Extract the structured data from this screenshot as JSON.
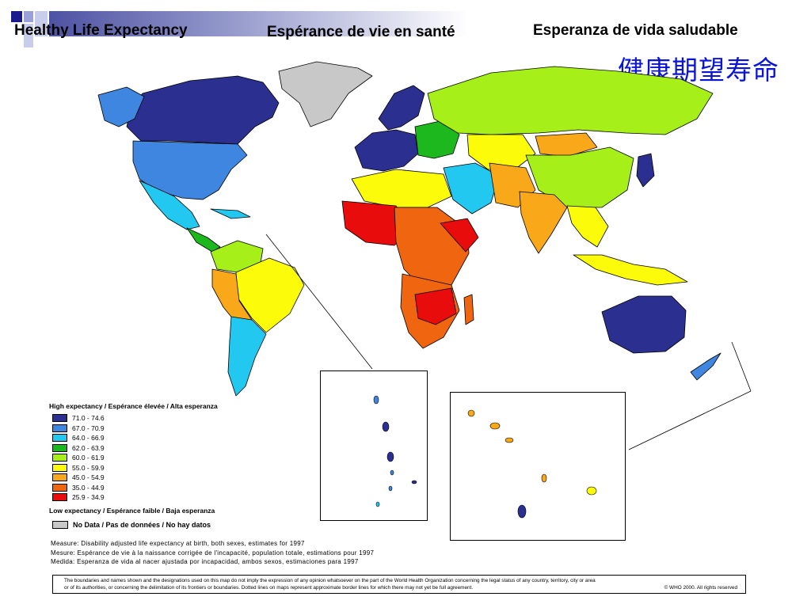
{
  "titles": {
    "en": "Healthy Life Expectancy",
    "fr": "Espérance de vie en santé",
    "es": "Esperanza de vida saludable",
    "zh": "健康期望寿命"
  },
  "legend": {
    "header": "High expectancy  / Espérance élevée  / Alta  esperanza",
    "classes": [
      {
        "label": "71.0 - 74.6",
        "color": "#2b2f8f"
      },
      {
        "label": "67.0 - 70.9",
        "color": "#3e86e0"
      },
      {
        "label": "64.0 - 66.9",
        "color": "#22c8f0"
      },
      {
        "label": "62.0 - 63.9",
        "color": "#1db81d"
      },
      {
        "label": "60.0 - 61.9",
        "color": "#a6ef18"
      },
      {
        "label": "55.0 - 59.9",
        "color": "#fbfb0a"
      },
      {
        "label": "45.0 - 54.9",
        "color": "#f9a81a"
      },
      {
        "label": "35.0 - 44.9",
        "color": "#f0650f"
      },
      {
        "label": "25.9 - 34.9",
        "color": "#e80c0c"
      }
    ],
    "footer": "Low  expectancy / Espérance faible / Baja esperanza",
    "no_data": {
      "label": "No Data / Pas de données / No hay datos",
      "color": "#c8c8c8"
    }
  },
  "notes": [
    "Measure: Disability adjusted life expectancy at birth, both sexes,  estimates for 1997",
    "Mesure: Espérance de vie à la naissance corrigée de l'incapacité, population totale,  estimations pour 1997",
    "Medida: Esperanza de vida al nacer ajustada por incapacidad, ambos sexos, estimaciones para 1997"
  ],
  "disclaimer": {
    "line1": "The boundaries and names shown and the designations used on this map do not imply the expression of any opinion whatsoever on the part of the World Health Organization concerning the legal status of any country,  territory, city or area",
    "line2": "or of its authorities, or concerning the delimitation of its frontiers or boundaries. Dotted lines on maps represent approximate border lines for which there may not yet be full agreement.",
    "copyright": "©     WHO 2000. All rights reserved"
  }
}
